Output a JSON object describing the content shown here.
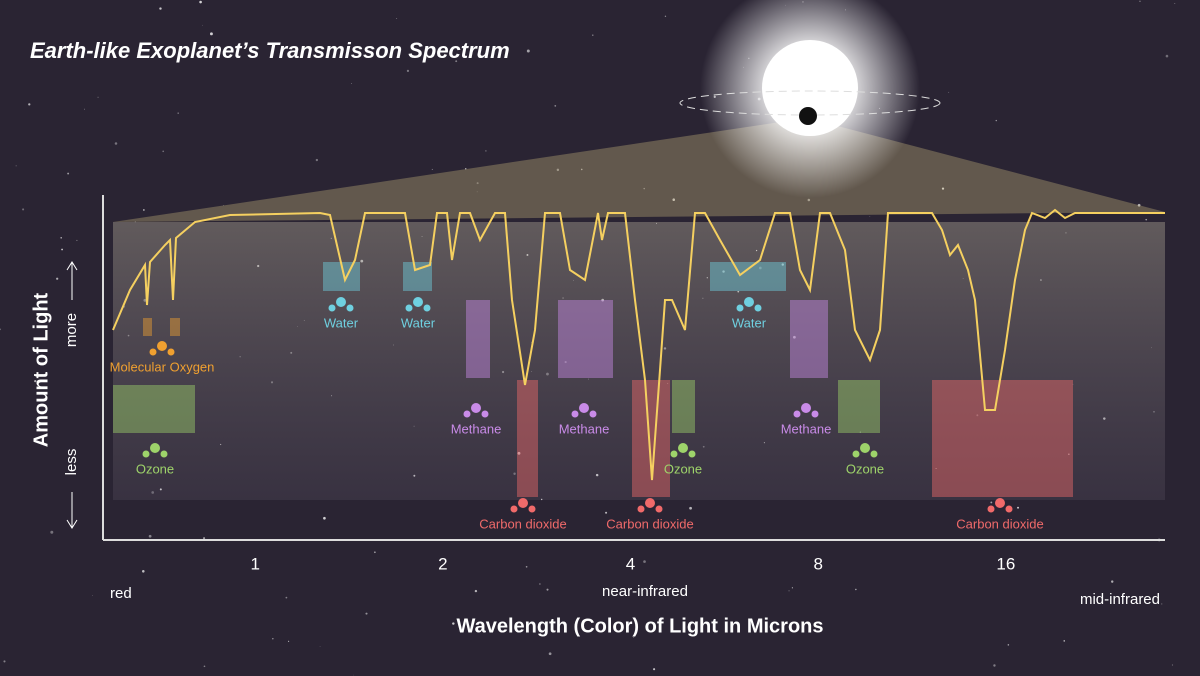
{
  "title": "Earth-like Exoplanet’s Transmisson Spectrum",
  "y_axis": {
    "label": "Amount of Light",
    "more": "more",
    "less": "less"
  },
  "x_axis": {
    "label": "Wavelength (Color) of Light in Microns",
    "scale": "log",
    "xlim": [
      0.57,
      28.8
    ],
    "ticks": [
      1,
      2,
      4,
      8,
      16
    ],
    "regions": [
      "red",
      "near-infrared",
      "mid-infrared"
    ]
  },
  "molecules": [
    {
      "label": "Molecular Oxygen",
      "color": "#f0a030"
    },
    {
      "label": "Ozone",
      "color": "#9ed36a"
    },
    {
      "label": "Water",
      "color": "#6fd0e0"
    },
    {
      "label": "Water",
      "color": "#6fd0e0"
    },
    {
      "label": "Methane",
      "color": "#c98be8"
    },
    {
      "label": "Carbon dioxide",
      "color": "#f06a6a"
    },
    {
      "label": "Methane",
      "color": "#c98be8"
    },
    {
      "label": "Carbon dioxide",
      "color": "#f06a6a"
    },
    {
      "label": "Ozone",
      "color": "#9ed36a"
    },
    {
      "label": "Water",
      "color": "#6fd0e0"
    },
    {
      "label": "Methane",
      "color": "#c98be8"
    },
    {
      "label": "Ozone",
      "color": "#9ed36a"
    },
    {
      "label": "Carbon dioxide",
      "color": "#f06a6a"
    }
  ]
}
